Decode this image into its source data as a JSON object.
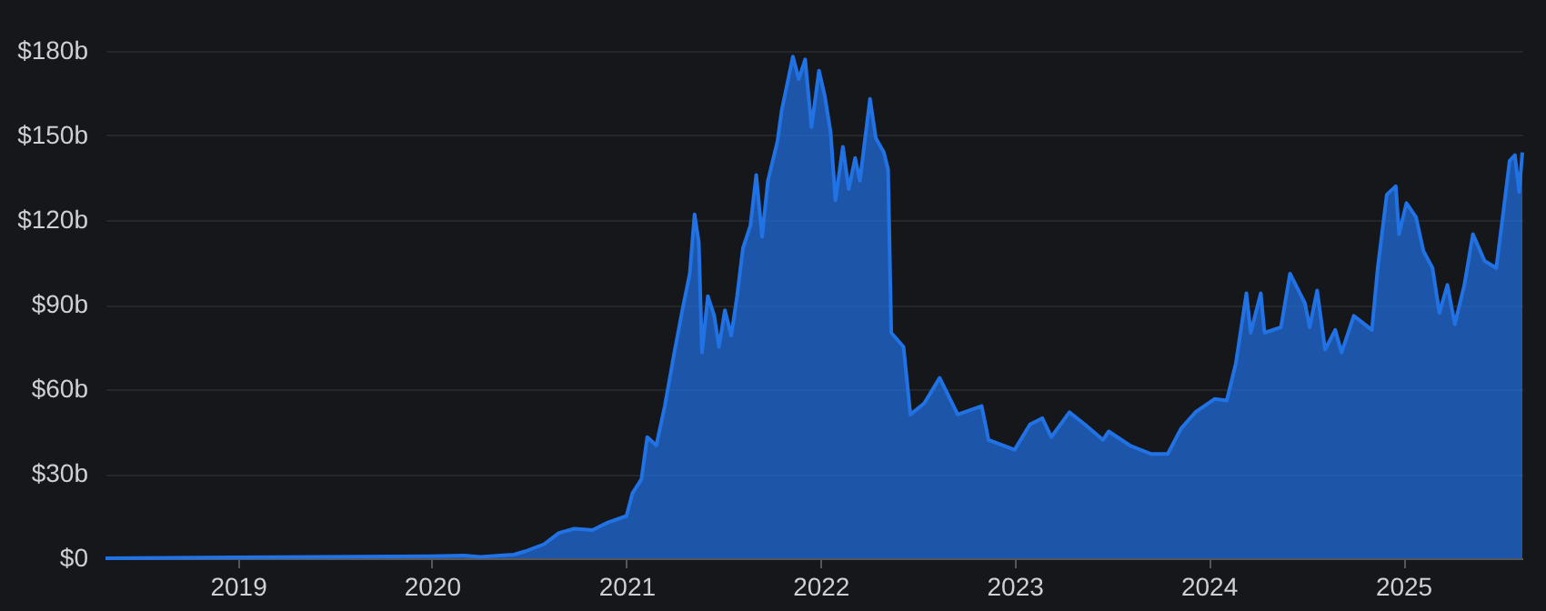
{
  "chart_data": {
    "type": "area",
    "x": [
      "2018-04-27",
      "2019-01-01",
      "2020-01-01",
      "2020-03-01",
      "2020-04-01",
      "2020-06-03",
      "2020-06-25",
      "2020-07-30",
      "2020-08-27",
      "2020-09-25",
      "2020-10-29",
      "2020-11-27",
      "2021-01-01",
      "2021-01-12",
      "2021-01-29",
      "2021-02-09",
      "2021-02-26",
      "2021-03-14",
      "2021-04-01",
      "2021-04-16",
      "2021-04-30",
      "2021-05-09",
      "2021-05-17",
      "2021-05-23",
      "2021-06-03",
      "2021-06-15",
      "2021-06-24",
      "2021-07-05",
      "2021-07-17",
      "2021-07-28",
      "2021-08-08",
      "2021-08-22",
      "2021-09-02",
      "2021-09-13",
      "2021-09-24",
      "2021-10-12",
      "2021-10-20",
      "2021-11-10",
      "2021-11-21",
      "2021-12-03",
      "2021-12-15",
      "2021-12-29",
      "2022-01-09",
      "2022-01-20",
      "2022-01-29",
      "2022-02-12",
      "2022-02-23",
      "2022-03-07",
      "2022-03-16",
      "2022-04-04",
      "2022-04-15",
      "2022-04-30",
      "2022-05-08",
      "2022-05-14",
      "2022-06-06",
      "2022-06-19",
      "2022-07-15",
      "2022-08-13",
      "2022-09-16",
      "2022-10-31",
      "2022-11-13",
      "2023-01-01",
      "2023-01-30",
      "2023-02-22",
      "2023-03-11",
      "2023-04-14",
      "2023-05-13",
      "2023-06-16",
      "2023-06-27",
      "2023-08-06",
      "2023-09-15",
      "2023-10-16",
      "2023-11-10",
      "2023-12-08",
      "2024-01-12",
      "2024-02-04",
      "2024-02-21",
      "2024-03-12",
      "2024-03-20",
      "2024-04-08",
      "2024-04-15",
      "2024-05-16",
      "2024-06-02",
      "2024-06-30",
      "2024-07-09",
      "2024-07-23",
      "2024-08-07",
      "2024-08-26",
      "2024-09-07",
      "2024-09-30",
      "2024-11-03",
      "2024-11-14",
      "2024-12-01",
      "2024-12-18",
      "2024-12-24",
      "2025-01-07",
      "2025-01-25",
      "2025-02-08",
      "2025-02-25",
      "2025-03-10",
      "2025-03-25",
      "2025-04-08",
      "2025-04-26",
      "2025-05-12",
      "2025-06-03",
      "2025-06-25",
      "2025-07-07",
      "2025-07-20",
      "2025-07-30",
      "2025-08-07",
      "2025-08-13"
    ],
    "series": [
      {
        "color": "#2172e5",
        "values": [
          0,
          0.3,
          0.7,
          1,
          0.5,
          1.3,
          2.5,
          5,
          9,
          10.5,
          10,
          12.7,
          15,
          23,
          28,
          43,
          40,
          54,
          73,
          88,
          101,
          122,
          112,
          73,
          93,
          86,
          75,
          88,
          79,
          93,
          110,
          118,
          136,
          114,
          134,
          148,
          159,
          178,
          170,
          177,
          153,
          173,
          164,
          151,
          127,
          146,
          131,
          142,
          134,
          163,
          149,
          144,
          138,
          80,
          75,
          51,
          55,
          64,
          51,
          54,
          42,
          38.5,
          47.5,
          49.7,
          43,
          51.8,
          47.5,
          42,
          45,
          40,
          37,
          37,
          46,
          52,
          56.5,
          56,
          69,
          94,
          80,
          94,
          80,
          82,
          101,
          90.5,
          82,
          95,
          74,
          81,
          73,
          86,
          81,
          103,
          129,
          132,
          115,
          126,
          121,
          109,
          103,
          87,
          97,
          83,
          97,
          115,
          105.5,
          103,
          121,
          141,
          143,
          130,
          144
        ]
      }
    ],
    "xlim": [
      "2018-04-27",
      "2025-08-13"
    ],
    "xticks": [
      "2019",
      "2020",
      "2021",
      "2022",
      "2023",
      "2024",
      "2025"
    ],
    "ylim": [
      0,
      180
    ],
    "yticks": [
      {
        "value": 0,
        "label": "$0"
      },
      {
        "value": 30,
        "label": "$30b"
      },
      {
        "value": 60,
        "label": "$60b"
      },
      {
        "value": 90,
        "label": "$90b"
      },
      {
        "value": 120,
        "label": "$120b"
      },
      {
        "value": 150,
        "label": "$150b"
      },
      {
        "value": 180,
        "label": "$180b"
      }
    ],
    "grid": "y",
    "legend": false
  }
}
